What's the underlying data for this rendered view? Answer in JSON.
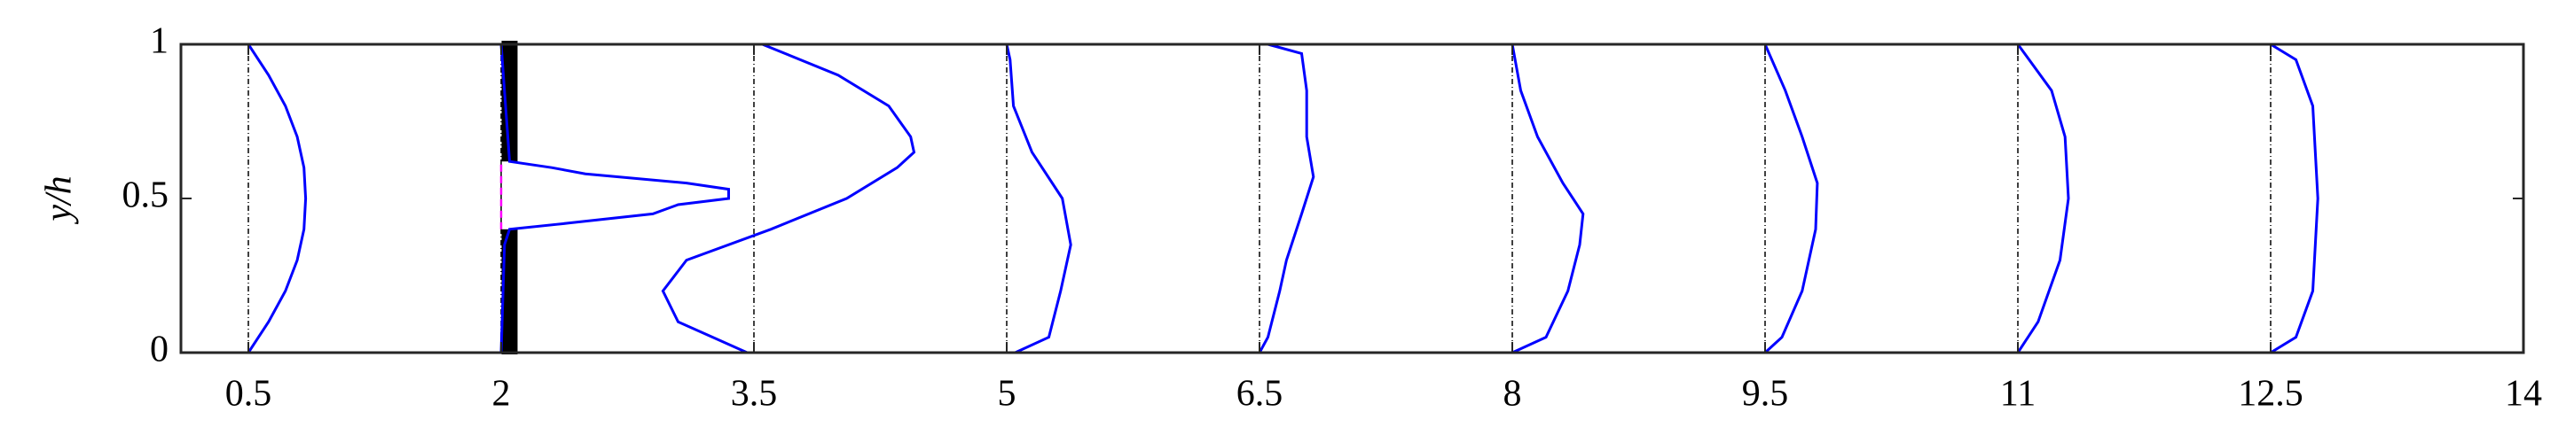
{
  "chart_data": {
    "type": "line",
    "y_label": "y/h",
    "xlim": [
      0.1,
      14
    ],
    "ylim": [
      0,
      1
    ],
    "xticks": [
      0.5,
      2,
      3.5,
      5,
      6.5,
      8,
      9.5,
      11,
      12.5,
      14
    ],
    "yticks": [
      0,
      0.5,
      1
    ],
    "reference_lines": [
      0.5,
      2,
      3.5,
      5,
      6.5,
      8,
      9.5,
      11,
      12.5
    ],
    "obstacle": {
      "x": 2.05,
      "color": "#000000",
      "spans": [
        [
          0,
          0.4
        ],
        [
          0.62,
          1
        ]
      ]
    },
    "gap_line": {
      "x": 2,
      "color": "#ff00ff",
      "span": [
        0.4,
        0.62
      ]
    },
    "series": [
      {
        "color": "#0000ff",
        "x": [
          0.5,
          0.62,
          0.72,
          0.79,
          0.83,
          0.84,
          0.83,
          0.79,
          0.72,
          0.62,
          0.5
        ],
        "values": [
          0,
          0.1,
          0.2,
          0.3,
          0.4,
          0.5,
          0.6,
          0.7,
          0.8,
          0.9,
          1
        ]
      },
      {
        "color": "#0000ff",
        "x": [
          2.0,
          2.02,
          2.05,
          2.4,
          2.9,
          3.05,
          3.35,
          3.35,
          3.1,
          2.5,
          2.3,
          2.05,
          2.0
        ],
        "values": [
          0,
          0.35,
          0.4,
          0.42,
          0.45,
          0.48,
          0.5,
          0.53,
          0.55,
          0.58,
          0.6,
          0.62,
          1
        ]
      },
      {
        "color": "#0000ff",
        "x": [
          3.46,
          3.05,
          2.96,
          3.1,
          3.6,
          4.05,
          4.35,
          4.45,
          4.43,
          4.3,
          4.0,
          3.55
        ],
        "values": [
          0,
          0.1,
          0.2,
          0.3,
          0.4,
          0.5,
          0.6,
          0.65,
          0.7,
          0.8,
          0.9,
          1
        ]
      },
      {
        "color": "#0000ff",
        "x": [
          5.05,
          5.25,
          5.32,
          5.38,
          5.33,
          5.15,
          5.04,
          5.02,
          5.0
        ],
        "values": [
          0,
          0.05,
          0.2,
          0.35,
          0.5,
          0.65,
          0.8,
          0.95,
          1
        ]
      },
      {
        "color": "#0000ff",
        "x": [
          6.5,
          6.55,
          6.62,
          6.66,
          6.75,
          6.82,
          6.78,
          6.78,
          6.75,
          6.55
        ],
        "values": [
          0,
          0.05,
          0.2,
          0.3,
          0.45,
          0.57,
          0.7,
          0.85,
          0.97,
          1
        ]
      },
      {
        "color": "#0000ff",
        "x": [
          8.0,
          8.2,
          8.33,
          8.4,
          8.42,
          8.3,
          8.15,
          8.05,
          8.0
        ],
        "values": [
          0,
          0.05,
          0.2,
          0.35,
          0.45,
          0.55,
          0.7,
          0.85,
          1
        ]
      },
      {
        "color": "#0000ff",
        "x": [
          9.5,
          9.6,
          9.72,
          9.8,
          9.81,
          9.72,
          9.62,
          9.5
        ],
        "values": [
          0,
          0.05,
          0.2,
          0.4,
          0.55,
          0.7,
          0.85,
          1
        ]
      },
      {
        "color": "#0000ff",
        "x": [
          11.0,
          11.12,
          11.25,
          11.3,
          11.28,
          11.2,
          11.0
        ],
        "values": [
          0,
          0.1,
          0.3,
          0.5,
          0.7,
          0.85,
          1
        ]
      },
      {
        "color": "#0000ff",
        "x": [
          12.5,
          12.65,
          12.75,
          12.78,
          12.75,
          12.65,
          12.5
        ],
        "values": [
          0,
          0.05,
          0.2,
          0.5,
          0.8,
          0.95,
          1
        ]
      }
    ]
  }
}
